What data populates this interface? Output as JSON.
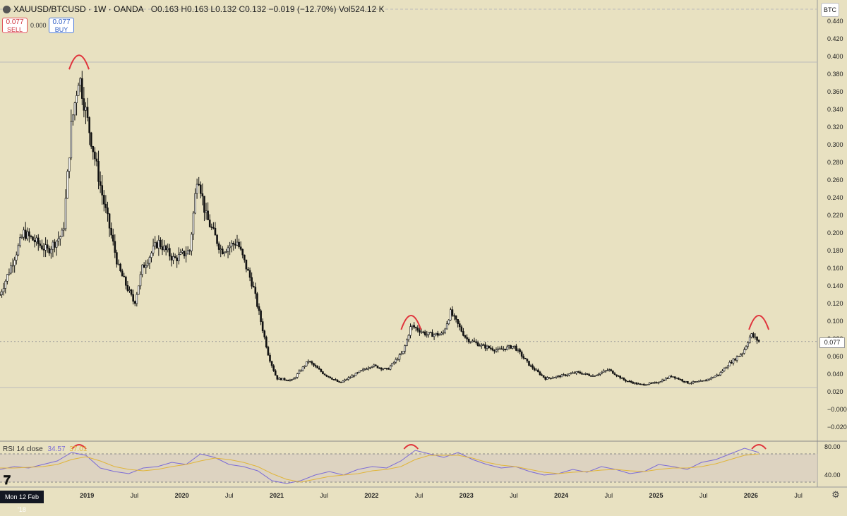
{
  "header": {
    "title": "XAUUSD/BTCUSD · 1W · OANDA",
    "ohlc": "O0.163 H0.163 L0.132 C0.132 −0.019 (−12.70%) Vol524.12 K"
  },
  "trade": {
    "sell_price": "0.077",
    "sell_label": "SELL",
    "spread": "0.000",
    "buy_price": "0.077",
    "buy_label": "BUY"
  },
  "currency": "BTC",
  "last_price": "0.077",
  "rsi": {
    "label": "RSI 14 close",
    "value": "34.57",
    "ma_value": "37.01"
  },
  "date_label": "Mon 12 Feb '18",
  "colors": {
    "background": "#e8e1c1",
    "candle": "#111111",
    "annotation": "#e0343c",
    "rsi_line": "#7b6bd6",
    "rsi_ma": "#e0b53a"
  },
  "icons": [
    "symbol-icon",
    "tradingview-logo-icon",
    "gear-icon"
  ],
  "chart_data": [
    {
      "type": "candlestick",
      "interval": "1W",
      "ylim": [
        -0.03,
        0.45
      ],
      "y_ticks": [
        "0.440",
        "0.420",
        "0.400",
        "0.380",
        "0.360",
        "0.340",
        "0.320",
        "0.300",
        "0.280",
        "0.260",
        "0.240",
        "0.220",
        "0.200",
        "0.180",
        "0.160",
        "0.140",
        "0.120",
        "0.100",
        "0.080",
        "0.060",
        "0.040",
        "0.020",
        "−0.000",
        "−0.020"
      ],
      "x_ticks": [
        "2019",
        "Jul",
        "2020",
        "Jul",
        "2021",
        "Jul",
        "2022",
        "Jul",
        "2023",
        "Jul",
        "2024",
        "Jul",
        "2025",
        "Jul",
        "2026",
        "Jul"
      ],
      "series": [
        {
          "x": [
            "2018-02",
            "2018-05",
            "2018-08",
            "2018-10",
            "2018-11",
            "2018-12",
            "2019-01",
            "2019-03",
            "2019-05",
            "2019-07",
            "2019-08",
            "2019-10",
            "2019-12",
            "2020-02",
            "2020-03",
            "2020-04",
            "2020-06",
            "2020-08",
            "2020-10",
            "2020-12",
            "2021-01",
            "2021-03",
            "2021-05",
            "2021-07",
            "2021-09",
            "2021-11",
            "2022-01",
            "2022-03",
            "2022-05",
            "2022-06",
            "2022-08",
            "2022-10",
            "2022-11",
            "2023-01",
            "2023-03",
            "2023-05",
            "2023-07",
            "2023-09",
            "2023-11",
            "2024-01",
            "2024-03",
            "2024-05",
            "2024-07",
            "2024-09",
            "2024-11",
            "2025-01",
            "2025-03",
            "2025-05",
            "2025-07",
            "2025-09",
            "2025-10",
            "2025-12",
            "2026-01",
            "2026-02"
          ],
          "values": [
            0.13,
            0.2,
            0.18,
            0.2,
            0.32,
            0.38,
            0.33,
            0.24,
            0.16,
            0.12,
            0.16,
            0.19,
            0.17,
            0.18,
            0.27,
            0.22,
            0.18,
            0.19,
            0.14,
            0.06,
            0.035,
            0.033,
            0.055,
            0.04,
            0.03,
            0.04,
            0.05,
            0.045,
            0.065,
            0.095,
            0.085,
            0.085,
            0.11,
            0.08,
            0.072,
            0.067,
            0.072,
            0.05,
            0.035,
            0.038,
            0.042,
            0.038,
            0.045,
            0.033,
            0.028,
            0.03,
            0.038,
            0.03,
            0.032,
            0.04,
            0.05,
            0.065,
            0.085,
            0.077
          ]
        }
      ],
      "annotations": [
        {
          "type": "top-arc",
          "x": "2018-12",
          "y": 0.395
        },
        {
          "type": "top-arc",
          "x": "2022-06",
          "y": 0.1
        },
        {
          "type": "top-arc",
          "x": "2026-02",
          "y": 0.1
        }
      ]
    },
    {
      "type": "line",
      "title": "RSI 14 close",
      "ylim": [
        25,
        85
      ],
      "y_ticks": [
        "80.00",
        "40.00"
      ],
      "bands": [
        30,
        70
      ],
      "series": [
        {
          "name": "RSI",
          "values": [
            48,
            52,
            50,
            55,
            60,
            72,
            68,
            50,
            45,
            42,
            50,
            52,
            58,
            55,
            70,
            65,
            55,
            52,
            46,
            32,
            28,
            32,
            40,
            45,
            40,
            48,
            52,
            50,
            60,
            75,
            70,
            65,
            72,
            62,
            55,
            50,
            52,
            45,
            40,
            42,
            48,
            44,
            52,
            48,
            42,
            45,
            55,
            52,
            48,
            58,
            62,
            70,
            78,
            72
          ]
        },
        {
          "name": "RSI-based MA",
          "values": [
            50,
            50,
            51,
            52,
            55,
            62,
            66,
            60,
            52,
            48,
            46,
            48,
            52,
            55,
            60,
            64,
            62,
            58,
            52,
            42,
            34,
            30,
            34,
            38,
            40,
            42,
            46,
            48,
            52,
            62,
            68,
            68,
            68,
            64,
            58,
            54,
            52,
            48,
            44,
            42,
            44,
            45,
            47,
            48,
            46,
            45,
            48,
            50,
            50,
            52,
            56,
            62,
            68,
            70
          ]
        }
      ],
      "annotations": [
        {
          "type": "top-arc",
          "x": "2018-12"
        },
        {
          "type": "top-arc",
          "x": "2022-06"
        },
        {
          "type": "top-arc",
          "x": "2026-02"
        }
      ]
    }
  ]
}
